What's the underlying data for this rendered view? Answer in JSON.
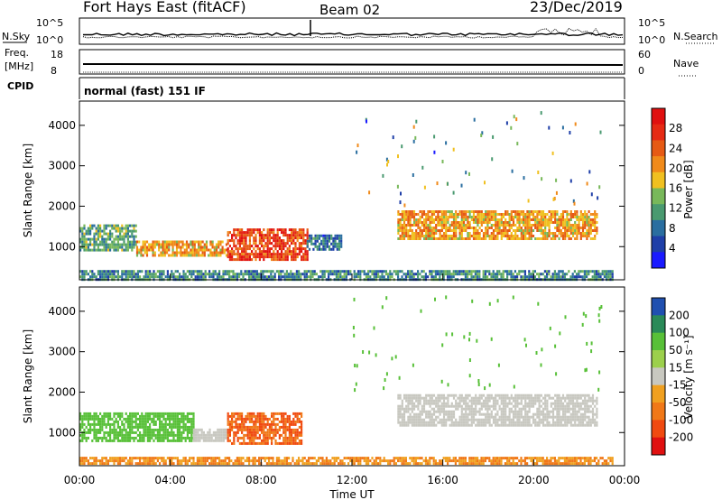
{
  "header": {
    "title": "Fort Hays East (fitACF)",
    "beam": "Beam 02",
    "date": "23/Dec/2019"
  },
  "noise_panel": {
    "left_label": "N.Sky",
    "right_label": "N.Search",
    "y_ticks": [
      "10^5",
      "10^0"
    ]
  },
  "freq_panel": {
    "left_label_1": "Freq.",
    "left_label_2": "[MHz]",
    "right_label": "Nave",
    "left_ticks": [
      "18",
      "8"
    ],
    "right_ticks": [
      "60",
      "0"
    ]
  },
  "cpid": {
    "label": "CPID",
    "mode": "normal (fast) 151 IF"
  },
  "time_axis": {
    "label": "Time UT",
    "ticks": [
      "00:00",
      "04:00",
      "08:00",
      "12:00",
      "16:00",
      "20:00",
      "00:00"
    ]
  },
  "colors": {
    "power": [
      "#1a1aff",
      "#1f3fa8",
      "#2a6ea0",
      "#4a9a70",
      "#78b85a",
      "#f0c020",
      "#f08a1a",
      "#e65a14",
      "#e62a14",
      "#e01010"
    ],
    "velocity": [
      "#e01010",
      "#f04a10",
      "#f07818",
      "#f0a020",
      "#c8c8c0",
      "#9cd04c",
      "#58c038",
      "#2a8a58",
      "#2050b0"
    ]
  },
  "chart_data": [
    {
      "type": "heatmap",
      "name": "power",
      "ylabel": "Slant Range [km]",
      "y_ticks": [
        1000,
        2000,
        3000,
        4000
      ],
      "ylim": [
        180,
        4600
      ],
      "xlim_hours": [
        0,
        24
      ],
      "colorbar": {
        "label": "Power [dB]",
        "ticks": [
          4,
          8,
          12,
          16,
          20,
          24,
          28
        ],
        "range": [
          0,
          32
        ]
      },
      "echo_regions": [
        {
          "t0": 0.0,
          "t1": 2.5,
          "r0": 900,
          "r1": 1550,
          "value": 12
        },
        {
          "t0": 2.5,
          "t1": 6.5,
          "r0": 750,
          "r1": 1150,
          "value": 20
        },
        {
          "t0": 6.5,
          "t1": 10.0,
          "r0": 650,
          "r1": 1450,
          "value": 26
        },
        {
          "t0": 10.0,
          "t1": 11.5,
          "r0": 900,
          "r1": 1300,
          "value": 8
        },
        {
          "t0": 14.0,
          "t1": 22.8,
          "r0": 1200,
          "r1": 1900,
          "value": 20
        },
        {
          "t0": 0.0,
          "t1": 23.5,
          "r0": 200,
          "r1": 420,
          "value": 10
        }
      ]
    },
    {
      "type": "heatmap",
      "name": "velocity",
      "ylabel": "Slant Range [km]",
      "y_ticks": [
        1000,
        2000,
        3000,
        4000
      ],
      "ylim": [
        180,
        4600
      ],
      "xlim_hours": [
        0,
        24
      ],
      "colorbar": {
        "label": "Velocity [m s⁻¹]",
        "ticks": [
          200,
          100,
          50,
          15,
          -15,
          -50,
          -100,
          -200
        ]
      },
      "echo_regions": [
        {
          "t0": 0.0,
          "t1": 5.0,
          "r0": 800,
          "r1": 1500,
          "value": 50
        },
        {
          "t0": 5.0,
          "t1": 6.5,
          "r0": 780,
          "r1": 1100,
          "value": 0
        },
        {
          "t0": 6.5,
          "t1": 9.8,
          "r0": 700,
          "r1": 1500,
          "value": -50
        },
        {
          "t0": 14.0,
          "t1": 22.8,
          "r0": 1200,
          "r1": 1950,
          "value": 0
        },
        {
          "t0": 0.0,
          "t1": 23.5,
          "r0": 200,
          "r1": 400,
          "value": -30
        }
      ]
    }
  ]
}
